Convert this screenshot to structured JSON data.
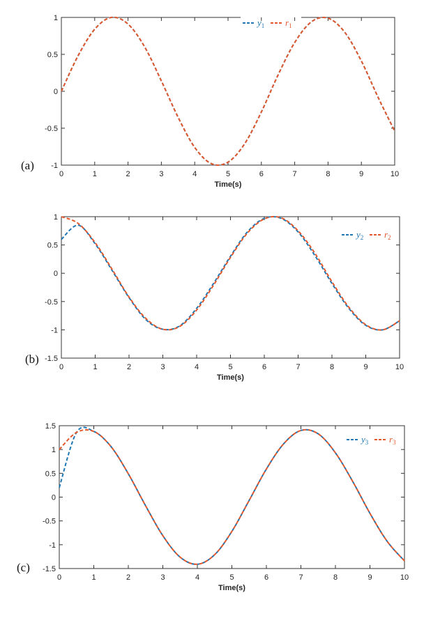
{
  "colors": {
    "series_y": "#1f77b4",
    "series_r": "#e2572b",
    "axis": "#333333"
  },
  "chart_data": [
    {
      "type": "line",
      "panel_label": "(a)",
      "xlabel": "Time(s)",
      "ylabel": "",
      "xlim": [
        0,
        10
      ],
      "ylim": [
        -1,
        1
      ],
      "xticks": [
        0,
        1,
        2,
        3,
        4,
        5,
        6,
        7,
        8,
        9,
        10
      ],
      "yticks": [
        1,
        0.5,
        0,
        -0.5,
        -1
      ],
      "ytick_labels": [
        "1",
        "0.5",
        "0",
        "-0.5",
        "-1"
      ],
      "grid": false,
      "legend_placement": "top-right",
      "x": [
        0,
        0.5,
        1,
        1.5,
        2,
        2.5,
        3,
        3.5,
        4,
        4.5,
        5,
        5.5,
        6,
        6.5,
        7,
        7.5,
        8,
        8.5,
        9,
        9.5,
        10
      ],
      "series": [
        {
          "name": "y",
          "sub": "1",
          "style": "dashed",
          "values": [
            0,
            0.48,
            0.84,
            1.0,
            0.91,
            0.6,
            0.14,
            -0.35,
            -0.76,
            -0.98,
            -0.96,
            -0.71,
            -0.28,
            0.22,
            0.66,
            0.94,
            0.99,
            0.8,
            0.41,
            -0.08,
            -0.54
          ]
        },
        {
          "name": "r",
          "sub": "1",
          "style": "dashed",
          "values": [
            0,
            0.48,
            0.84,
            1.0,
            0.91,
            0.6,
            0.14,
            -0.35,
            -0.76,
            -0.98,
            -0.96,
            -0.71,
            -0.28,
            0.22,
            0.66,
            0.94,
            0.99,
            0.8,
            0.41,
            -0.08,
            -0.54
          ]
        }
      ]
    },
    {
      "type": "line",
      "panel_label": "(b)",
      "xlabel": "Time(s)",
      "ylabel": "",
      "xlim": [
        0,
        10
      ],
      "ylim": [
        -1.5,
        1
      ],
      "xticks": [
        0,
        1,
        2,
        3,
        4,
        5,
        6,
        7,
        8,
        9,
        10
      ],
      "yticks": [
        1,
        0.5,
        0,
        -0.5,
        -1,
        -1.5
      ],
      "ytick_labels": [
        "1",
        "0.5",
        "0",
        "-0.5",
        "-1",
        "-1.5"
      ],
      "grid": false,
      "legend_placement": "top-right",
      "x": [
        0,
        0.5,
        1,
        1.5,
        2,
        2.5,
        3,
        3.5,
        4,
        4.5,
        5,
        5.5,
        6,
        6.5,
        7,
        7.5,
        8,
        8.5,
        9,
        9.5,
        10
      ],
      "series": [
        {
          "name": "y",
          "sub": "2",
          "style": "dashed",
          "values": [
            0.6,
            0.85,
            0.52,
            0.05,
            -0.43,
            -0.82,
            -0.99,
            -0.93,
            -0.62,
            -0.18,
            0.3,
            0.73,
            0.97,
            0.97,
            0.73,
            0.31,
            -0.18,
            -0.62,
            -0.92,
            -1.0,
            -0.84
          ]
        },
        {
          "name": "r",
          "sub": "2",
          "style": "dashed",
          "values": [
            1.0,
            0.88,
            0.54,
            0.07,
            -0.42,
            -0.8,
            -0.99,
            -0.94,
            -0.65,
            -0.21,
            0.28,
            0.71,
            0.96,
            0.98,
            0.75,
            0.35,
            -0.15,
            -0.6,
            -0.91,
            -1.0,
            -0.84
          ]
        }
      ]
    },
    {
      "type": "line",
      "panel_label": "(c)",
      "xlabel": "Time(s)",
      "ylabel": "",
      "xlim": [
        0,
        10
      ],
      "ylim": [
        -1.5,
        1.5
      ],
      "xticks": [
        0,
        1,
        2,
        3,
        4,
        5,
        6,
        7,
        8,
        9,
        10
      ],
      "yticks": [
        1.5,
        1,
        0.5,
        0,
        -0.5,
        -1,
        -1.5
      ],
      "ytick_labels": [
        "1.5",
        "1",
        "0.5",
        "0",
        "-0.5",
        "-1",
        "-1.5"
      ],
      "grid": false,
      "legend_placement": "top-right",
      "x": [
        0,
        0.5,
        1,
        1.5,
        2,
        2.5,
        3,
        3.5,
        4,
        4.5,
        5,
        5.5,
        6,
        6.5,
        7,
        7.5,
        8,
        8.5,
        9,
        9.5,
        10
      ],
      "series": [
        {
          "name": "y",
          "sub": "3",
          "style": "dashed",
          "values": [
            0.2,
            1.36,
            1.38,
            1.06,
            0.49,
            -0.18,
            -0.81,
            -1.26,
            -1.41,
            -1.21,
            -0.72,
            -0.07,
            0.59,
            1.12,
            1.4,
            1.33,
            0.93,
            0.33,
            -0.34,
            -0.93,
            -1.34
          ]
        },
        {
          "name": "r",
          "sub": "3",
          "style": "dashed",
          "values": [
            1.0,
            1.36,
            1.38,
            1.06,
            0.49,
            -0.18,
            -0.81,
            -1.26,
            -1.41,
            -1.21,
            -0.72,
            -0.07,
            0.59,
            1.12,
            1.4,
            1.33,
            0.93,
            0.33,
            -0.34,
            -0.93,
            -1.34
          ]
        }
      ]
    }
  ]
}
